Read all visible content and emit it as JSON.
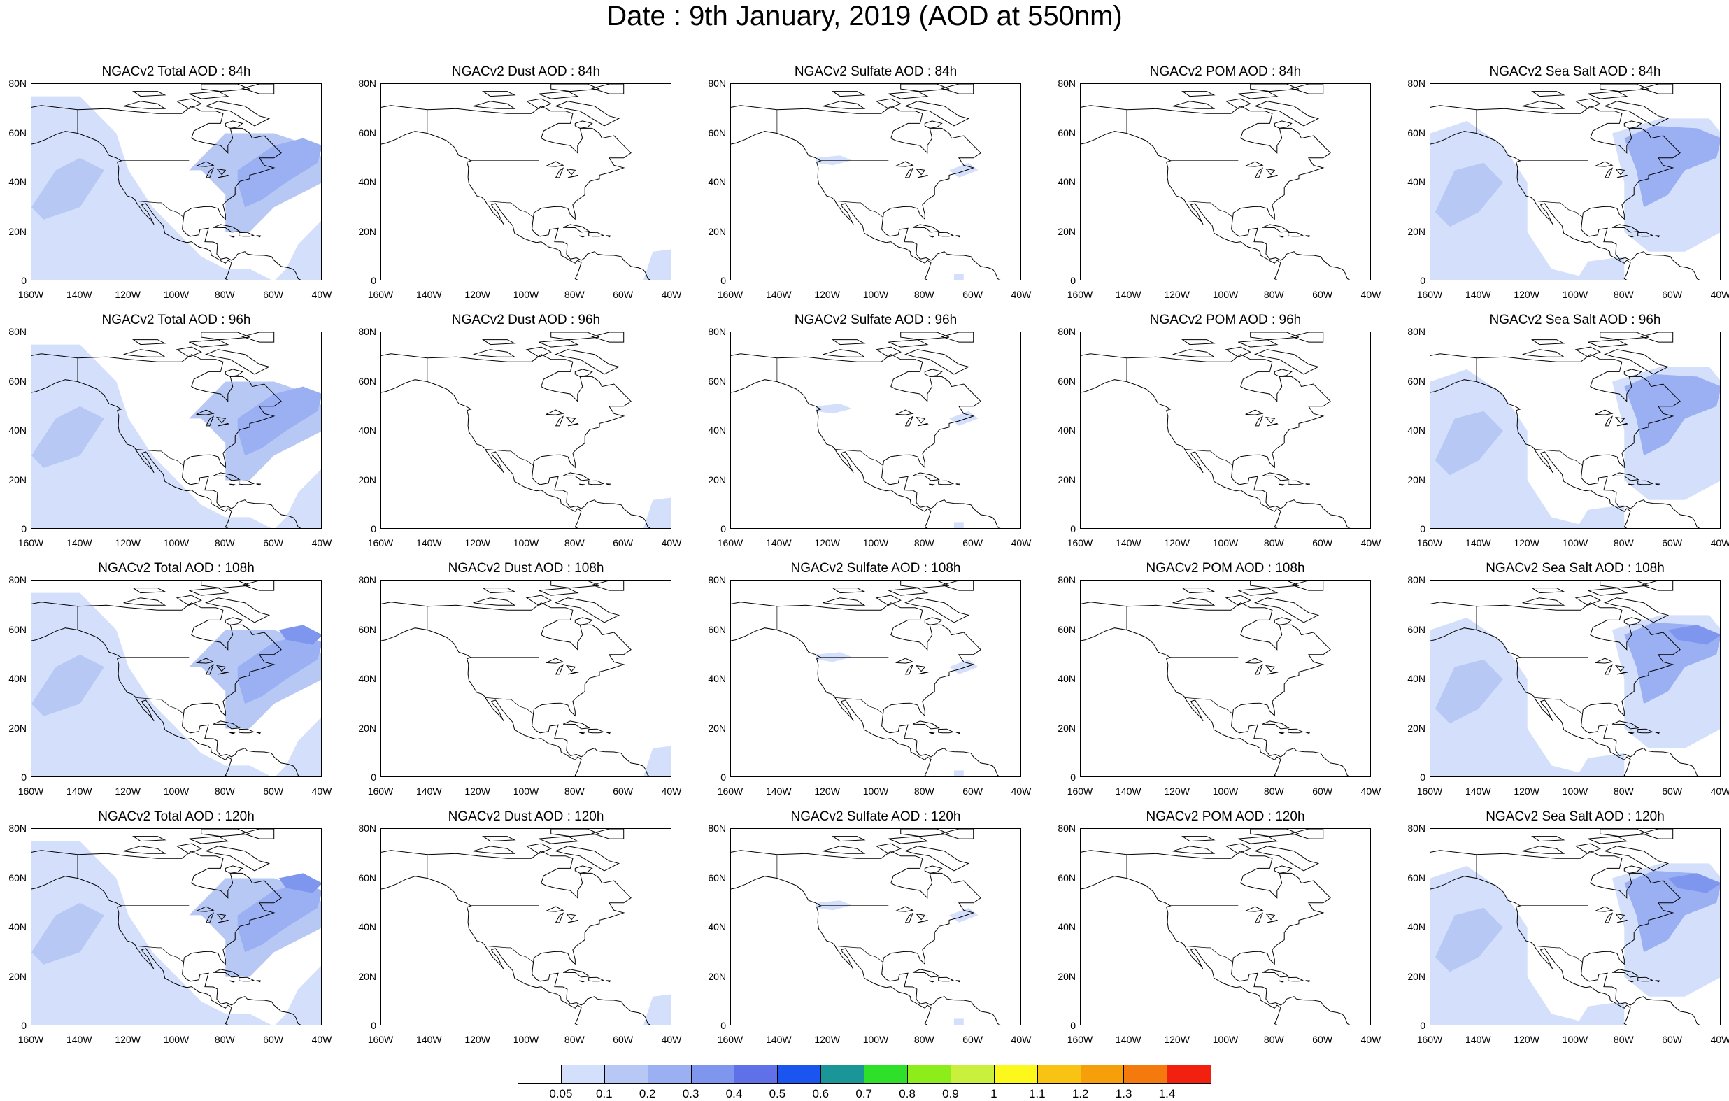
{
  "title": "Date : 9th January, 2019 (AOD at 550nm)",
  "panels": [
    [
      "NGACv2 Total AOD : 84h",
      "NGACv2 Dust AOD : 84h",
      "NGACv2 Sulfate AOD : 84h",
      "NGACv2 POM AOD : 84h",
      "NGACv2 Sea Salt AOD : 84h"
    ],
    [
      "NGACv2 Total AOD : 96h",
      "NGACv2 Dust AOD : 96h",
      "NGACv2 Sulfate AOD : 96h",
      "NGACv2 POM AOD : 96h",
      "NGACv2 Sea Salt AOD : 96h"
    ],
    [
      "NGACv2 Total AOD : 108h",
      "NGACv2 Dust AOD : 108h",
      "NGACv2 Sulfate AOD : 108h",
      "NGACv2 POM AOD : 108h",
      "NGACv2 Sea Salt AOD : 108h"
    ],
    [
      "NGACv2 Total AOD : 120h",
      "NGACv2 Dust AOD : 120h",
      "NGACv2 Sulfate AOD : 120h",
      "NGACv2 POM AOD : 120h",
      "NGACv2 Sea Salt  AOD : 120h"
    ]
  ],
  "lat_ticks": [
    "80N",
    "60N",
    "40N",
    "20N",
    "0"
  ],
  "lon_ticks": [
    "160W",
    "140W",
    "120W",
    "100W",
    "80W",
    "60W",
    "40W"
  ],
  "colorbar": {
    "labels": [
      "0.05",
      "0.1",
      "0.2",
      "0.3",
      "0.4",
      "0.5",
      "0.6",
      "0.7",
      "0.8",
      "0.9",
      "1",
      "1.1",
      "1.2",
      "1.3",
      "1.4"
    ],
    "colors": [
      "#ffffff",
      "#d4e0fb",
      "#b8c8f5",
      "#9bb0f3",
      "#7f96ef",
      "#6070e8",
      "#1a55f0",
      "#1a9698",
      "#2fe02a",
      "#8ced1b",
      "#c8f03c",
      "#fcf81c",
      "#f8c312",
      "#f59f0a",
      "#f57a0e",
      "#f2200e"
    ]
  }
}
